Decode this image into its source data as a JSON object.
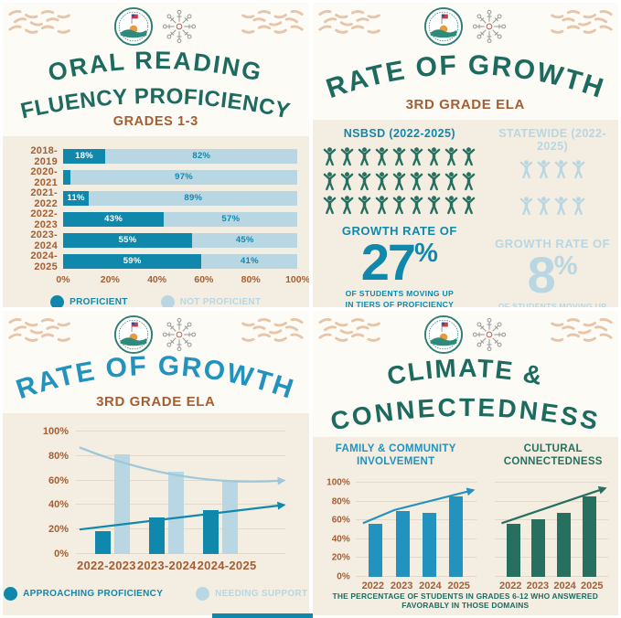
{
  "colors": {
    "teal_title": "#1d6a5e",
    "blue": "#1088ab",
    "blue_bright": "#2292bf",
    "light_blue": "#b9d7e2",
    "brown": "#a45e33",
    "tan_waves": "#e6c5a9",
    "cream": "#f3ede2",
    "people_teal": "#27705f"
  },
  "logo": {
    "seal": "school-district-seal",
    "snowflake": "snowflake-emblem"
  },
  "panels": {
    "orf": {
      "title1": "ORAL READING",
      "title2": "FLUENCY PROFICIENCY",
      "subtitle": "GRADES 1-3"
    },
    "growth_picto": {
      "title": "RATE OF GROWTH",
      "subtitle": "3RD GRADE ELA",
      "rate_label": "GROWTH RATE OF",
      "caption1": "OF STUDENTS MOVING UP",
      "caption2": "IN TIERS OF PROFICIENCY"
    },
    "growth_chart": {
      "title": "RATE OF GROWTH",
      "subtitle": "3RD GRADE ELA"
    },
    "climate": {
      "title1": "CLIMATE &",
      "title2": "CONNECTEDNESS",
      "chart1_title1": "FAMILY & COMMUNITY",
      "chart1_title2": "INVOLVEMENT",
      "chart2_title1": "CULTURAL",
      "chart2_title2": "CONNECTEDNESS"
    }
  },
  "chart_data": [
    {
      "id": "orf-stacked-bars",
      "type": "bar",
      "subtype": "horizontal-stacked",
      "title": "ORAL READING FLUENCY PROFICIENCY - GRADES 1-3",
      "categories": [
        "2018-2019",
        "2020-2021",
        "2021-2022",
        "2022-2023",
        "2023-2024",
        "2024-2025"
      ],
      "series": [
        {
          "name": "Proficient",
          "color": "#1088ab",
          "values": [
            18,
            3,
            11,
            43,
            55,
            59
          ],
          "labels": [
            "18%",
            "",
            "11%",
            "43%",
            "55%",
            "59%"
          ]
        },
        {
          "name": "Not Proficient",
          "color": "#b9d7e2",
          "values": [
            82,
            97,
            89,
            57,
            45,
            41
          ],
          "labels": [
            "82%",
            "97%",
            "89%",
            "57%",
            "45%",
            "41%"
          ]
        }
      ],
      "x_ticks": [
        "0%",
        "20%",
        "40%",
        "60%",
        "80%",
        "100%"
      ],
      "xlim": [
        0,
        100
      ],
      "legend_position": "bottom"
    },
    {
      "id": "growth-pictogram",
      "type": "pictogram",
      "title": "RATE OF GROWTH - 3RD GRADE ELA",
      "unit": "1 person icon = 1% growth",
      "groups": [
        {
          "name": "NSBSD (2022-2025)",
          "count": 27,
          "per_row": 9,
          "rate_value": "27",
          "rate_suffix": "%",
          "color": "#27705f"
        },
        {
          "name": "STATEWIDE (2022-2025)",
          "count": 8,
          "per_row": 4,
          "rate_value": "8",
          "rate_suffix": "%",
          "color": "#b9d7e2"
        }
      ]
    },
    {
      "id": "growth-grouped-bars",
      "type": "bar",
      "subtype": "grouped-vertical-with-trend-arrows",
      "title": "RATE OF GROWTH - 3RD GRADE ELA",
      "categories": [
        "2022-2023",
        "2023-2024",
        "2024-2025"
      ],
      "series": [
        {
          "name": "Approaching Proficiency",
          "color": "#1088ab",
          "values": [
            19,
            30,
            36
          ]
        },
        {
          "name": "Needing Support",
          "color": "#b9d7e2",
          "values": [
            81,
            67,
            60
          ]
        }
      ],
      "y_ticks": [
        "0%",
        "20%",
        "40%",
        "60%",
        "80%",
        "100%"
      ],
      "ylim": [
        0,
        100
      ],
      "grid": true,
      "trend_arrows": [
        {
          "series": "Needing Support",
          "from": 87,
          "to": 60,
          "direction": "down",
          "color": "#9cc8da"
        },
        {
          "series": "Approaching Proficiency",
          "from": 20,
          "to": 40,
          "direction": "up",
          "color": "#1088ab"
        }
      ],
      "legend_position": "bottom"
    },
    {
      "id": "climate-connectedness",
      "type": "bar",
      "subtype": "two-chart-vertical-with-trend-arrows",
      "title": "CLIMATE & CONNECTEDNESS",
      "charts": [
        {
          "title": "FAMILY & COMMUNITY INVOLVEMENT",
          "color": "#2292bf",
          "categories": [
            "2022",
            "2023",
            "2024",
            "2025"
          ],
          "values": [
            56,
            70,
            68,
            85
          ],
          "trend_points": [
            [
              6,
              57
            ],
            [
              32,
              71
            ],
            [
              97,
              92
            ]
          ]
        },
        {
          "title": "CULTURAL CONNECTEDNESS",
          "color": "#27705f",
          "categories": [
            "2022",
            "2023",
            "2024",
            "2025"
          ],
          "values": [
            56,
            61,
            68,
            85
          ],
          "trend_points": [
            [
              6,
              57
            ],
            [
              97,
              94
            ]
          ]
        }
      ],
      "y_ticks": [
        "0%",
        "20%",
        "40%",
        "60%",
        "80%",
        "100%"
      ],
      "ylim": [
        0,
        100
      ],
      "grid": true,
      "footnote": "THE PERCENTAGE OF STUDENTS IN GRADES 6-12 WHO ANSWERED FAVORABLY IN THOSE DOMAINS"
    }
  ]
}
